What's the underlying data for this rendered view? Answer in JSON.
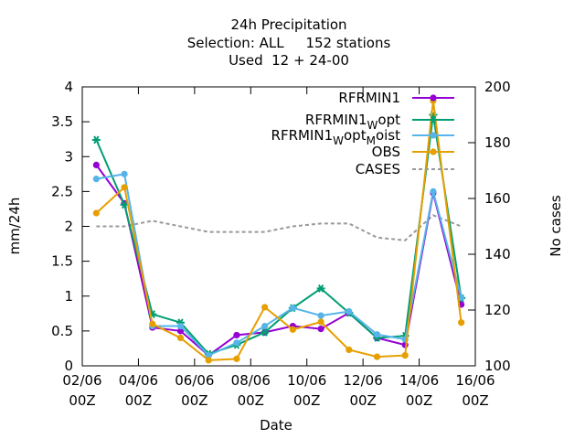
{
  "chart_data": {
    "type": "line",
    "title_lines": [
      "24h Precipitation",
      "Selection: ALL     152 stations",
      "Used  12 + 24-00"
    ],
    "xlabel": "Date",
    "ylabel": "mm/24h",
    "y2label": "No cases",
    "ylim": [
      0,
      4
    ],
    "y2lim": [
      100,
      200
    ],
    "yticks": [
      "0",
      "0.5",
      "1",
      "1.5",
      "2",
      "2.5",
      "3",
      "3.5",
      "4"
    ],
    "y2ticks": [
      "100",
      "120",
      "140",
      "160",
      "180",
      "200"
    ],
    "xticks": [
      {
        "line1": "02/06",
        "line2": "00Z"
      },
      {
        "line1": "04/06",
        "line2": "00Z"
      },
      {
        "line1": "06/06",
        "line2": "00Z"
      },
      {
        "line1": "08/06",
        "line2": "00Z"
      },
      {
        "line1": "10/06",
        "line2": "00Z"
      },
      {
        "line1": "12/06",
        "line2": "00Z"
      },
      {
        "line1": "14/06",
        "line2": "00Z"
      },
      {
        "line1": "16/06",
        "line2": "00Z"
      }
    ],
    "x_days": [
      2.5,
      3.5,
      4.5,
      5.5,
      6.5,
      7.5,
      8.5,
      9.5,
      10.5,
      11.5,
      12.5,
      13.5,
      14.5,
      15.5
    ],
    "xlim_days": [
      2,
      16
    ],
    "legend_position": "top-right",
    "series": [
      {
        "name": "RFRMIN1",
        "legend": {
          "main": "RFRMIN1",
          "subs": []
        },
        "color": "#9400d3",
        "marker": "circle",
        "values": [
          2.88,
          2.33,
          0.55,
          0.5,
          0.15,
          0.44,
          0.48,
          0.57,
          0.53,
          0.76,
          0.4,
          0.3,
          2.48,
          0.88
        ]
      },
      {
        "name": "RFRMIN1_W opt",
        "legend": {
          "main": "RFRMIN1",
          "subs": [
            [
              "W",
              "opt"
            ]
          ]
        },
        "color": "#009e73",
        "marker": "star",
        "values": [
          3.24,
          2.31,
          0.74,
          0.62,
          0.17,
          0.3,
          0.48,
          0.83,
          1.11,
          0.76,
          0.4,
          0.43,
          3.6,
          0.97
        ]
      },
      {
        "name": "RFRMIN1_W opt_M oist",
        "legend": {
          "main": "RFRMIN1",
          "subs": [
            [
              "W",
              "opt"
            ],
            [
              "M",
              "oist"
            ]
          ]
        },
        "color": "#56b4e9",
        "marker": "circle",
        "values": [
          2.68,
          2.75,
          0.57,
          0.57,
          0.15,
          0.33,
          0.57,
          0.83,
          0.72,
          0.78,
          0.45,
          0.38,
          2.5,
          0.98
        ]
      },
      {
        "name": "OBS",
        "legend": {
          "main": "OBS",
          "subs": []
        },
        "color": "#e69f00",
        "marker": "circle",
        "values": [
          2.19,
          2.56,
          0.6,
          0.4,
          0.08,
          0.1,
          0.84,
          0.52,
          0.63,
          0.23,
          0.13,
          0.15,
          3.8,
          0.62
        ]
      }
    ],
    "cases": {
      "name": "CASES",
      "color": "#999999",
      "axis": "y2",
      "values": [
        150,
        150,
        152,
        150,
        148,
        148,
        148,
        150,
        151,
        151,
        146,
        145,
        154,
        150
      ]
    }
  }
}
